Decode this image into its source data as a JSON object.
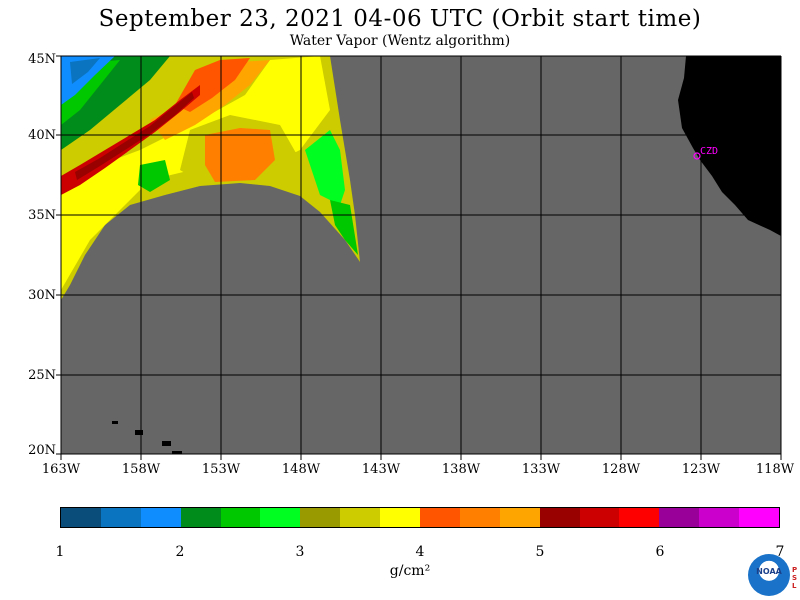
{
  "header": {
    "title": "September 23, 2021  04-06 UTC  (Orbit start time)",
    "subtitle": "Water Vapor (Wentz algorithm)"
  },
  "map": {
    "lat_labels": [
      "45N",
      "40N",
      "35N",
      "30N",
      "25N",
      "20N"
    ],
    "lon_labels": [
      "163W",
      "158W",
      "153W",
      "148W",
      "143W",
      "138W",
      "133W",
      "128W",
      "123W",
      "118W"
    ],
    "station_label": "CZD",
    "colors": {
      "ocean_no_data": "#666666",
      "land": "#000000",
      "grid": "#000000",
      "station": "#ff00ff"
    }
  },
  "colorbar": {
    "colors": [
      "#0a4d7a",
      "#0a74c0",
      "#0f8dff",
      "#008c1a",
      "#00c800",
      "#00ff20",
      "#999900",
      "#cccc00",
      "#ffff00",
      "#ff5500",
      "#ff7f00",
      "#ffa500",
      "#990000",
      "#cc0000",
      "#ff0000",
      "#990099",
      "#cc00cc",
      "#ff00ff"
    ],
    "tick_labels": [
      "1",
      "2",
      "3",
      "4",
      "5",
      "6",
      "7"
    ],
    "unit": "g/cm²"
  },
  "logos": {
    "noaa": "NOAA",
    "psl": "PSL"
  }
}
